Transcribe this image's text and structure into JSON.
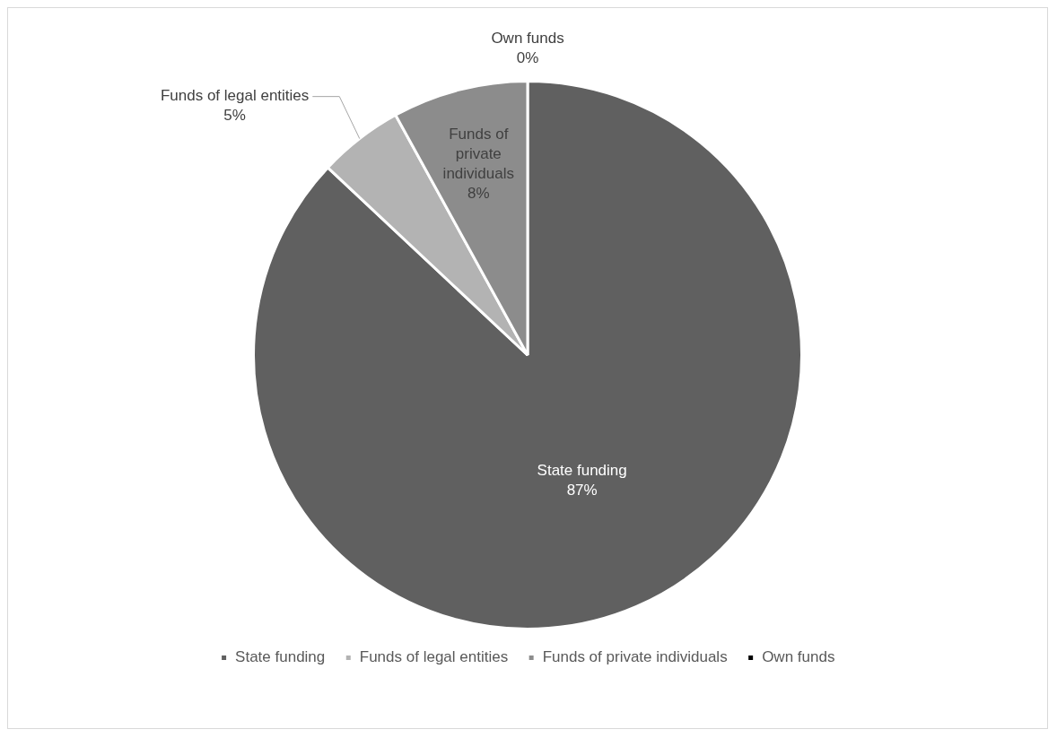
{
  "chart_data": {
    "type": "pie",
    "categories": [
      "State funding",
      "Funds of legal entities",
      "Funds of private individuals",
      "Own funds"
    ],
    "values": [
      87,
      5,
      8,
      0
    ],
    "colors": [
      "#606060",
      "#b3b3b3",
      "#8c8c8c",
      "#000000"
    ],
    "value_labels": [
      "87%",
      "5%",
      "8%",
      "0%"
    ],
    "legend": "bottom"
  }
}
